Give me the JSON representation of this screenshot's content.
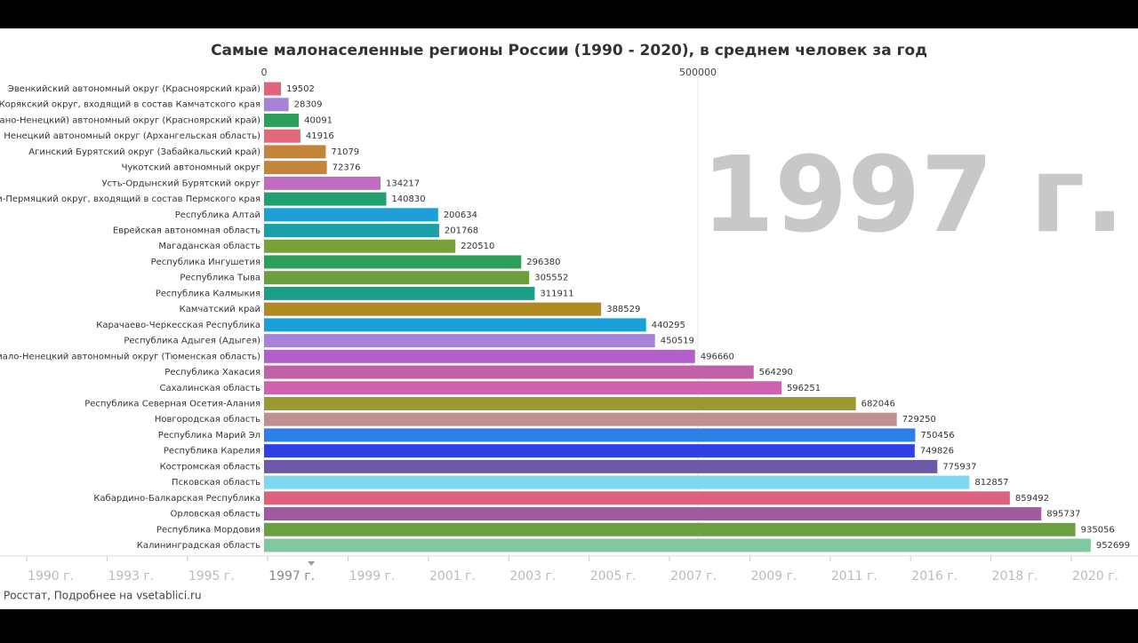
{
  "chart_data": {
    "type": "bar",
    "orientation": "horizontal",
    "title": "Самые малонаселенные регионы России (1990 - 2020), в среднем человек за год",
    "annotation": "1997 г.",
    "categories": [
      "Эвенкийский автономный округ (Красноярский край)",
      "Корякский округ, входящий в состав Камчатского края",
      "й (Долгано-Ненецкий) автономный округ (Красноярский край)",
      "Ненецкий автономный округ (Архангельская область)",
      "Агинский Бурятский округ (Забайкальский край)",
      "Чукотский автономный округ",
      "Усть-Ордынский Бурятский округ",
      "Коми-Пермяцкий округ, входящий в состав Пермского края",
      "Республика Алтай",
      "Еврейская автономная область",
      "Магаданская область",
      "Республика Ингушетия",
      "Республика Тыва",
      "Республика Калмыкия",
      "Камчатский край",
      "Карачаево-Черкесская Республика",
      "Республика Адыгея (Адыгея)",
      "Ямало-Ненецкий автономный округ (Тюменская область)",
      "Республика Хакасия",
      "Сахалинская область",
      "Республика Северная Осетия-Алания",
      "Новгородская область",
      "Республика Марий Эл",
      "Республика Карелия",
      "Костромская область",
      "Псковская область",
      "Кабардино-Балкарская Республика",
      "Орловская область",
      "Республика Мордовия",
      "Калининградская область"
    ],
    "values": [
      19502,
      28309,
      40091,
      41916,
      71079,
      72376,
      134217,
      140830,
      200634,
      201768,
      220510,
      296380,
      305552,
      311911,
      388529,
      440295,
      450519,
      496660,
      564290,
      596251,
      682046,
      729250,
      750456,
      749826,
      775937,
      812857,
      859492,
      895737,
      935056,
      952699
    ],
    "colors": [
      "#e0647a",
      "#a683d8",
      "#2ca05a",
      "#e2687a",
      "#c4853a",
      "#c4853a",
      "#c06cc0",
      "#20a070",
      "#1f9fd8",
      "#1aa0a8",
      "#7aa03a",
      "#2ca05a",
      "#6aa03a",
      "#1aa088",
      "#b08a20",
      "#1a9fd8",
      "#a683d8",
      "#b060c8",
      "#c060a8",
      "#d060b0",
      "#9a9a30",
      "#c09090",
      "#2a80e8",
      "#3040e8",
      "#6a5aa8",
      "#80d8f0",
      "#e06080",
      "#a05aa0",
      "#6aa040",
      "#80c8a0"
    ],
    "xlim": [
      0,
      1000000
    ],
    "xticks": [
      0,
      500000
    ],
    "grid": true
  },
  "timeline": {
    "labels": [
      "1990 г.",
      "1993 г.",
      "1995 г.",
      "1997 г.",
      "1999 г.",
      "2001 г.",
      "2003 г.",
      "2005 г.",
      "2007 г.",
      "2009 г.",
      "2011 г.",
      "2016 г.",
      "2018 г.",
      "2020 г."
    ],
    "current": 3
  },
  "source": "Росстат, Подробнее на vsetablici.ru"
}
